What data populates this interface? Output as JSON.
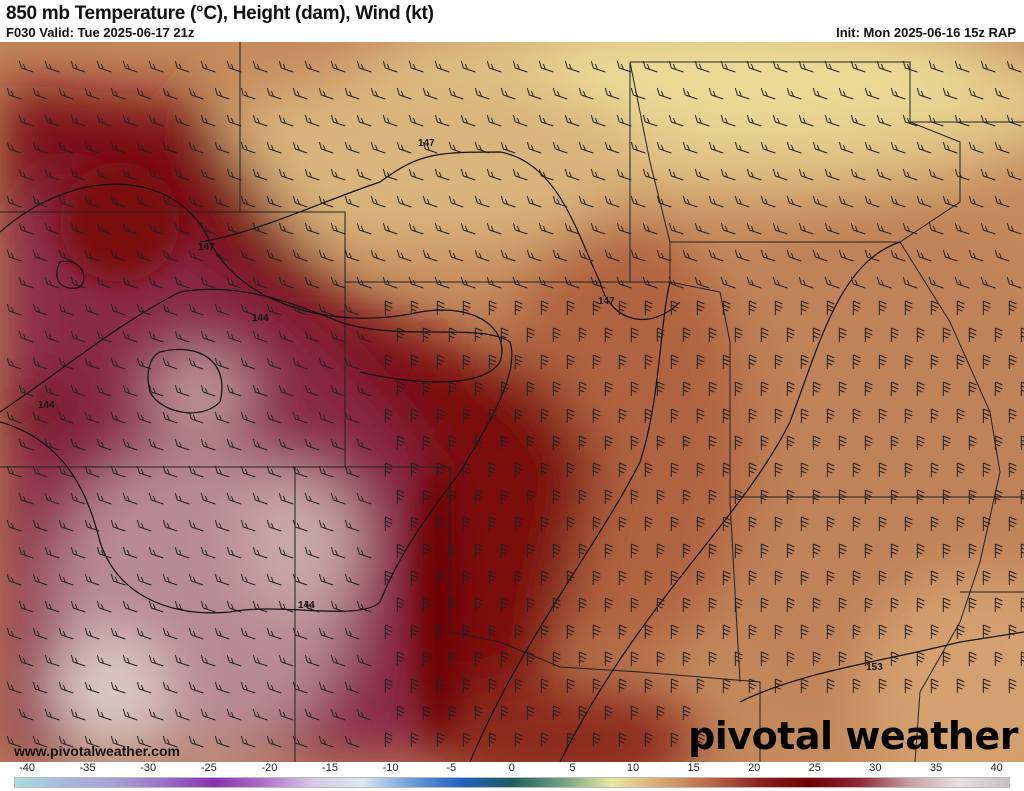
{
  "header": {
    "title": "850 mb Temperature (°C), Height (dam), Wind (kt)",
    "valid": "F030 Valid: Tue 2025-06-17 21z",
    "init": "Init: Mon 2025-06-16 15z RAP"
  },
  "map": {
    "contour_labels": [
      "147",
      "147",
      "147",
      "144",
      "144",
      "144",
      "153"
    ]
  },
  "footer": {
    "url": "www.pivotalweather.com",
    "logo": "pivotal weather"
  },
  "colorbar": {
    "unit": "°C",
    "ticks": [
      "-40",
      "-35",
      "-30",
      "-25",
      "-20",
      "-15",
      "-10",
      "-5",
      "0",
      "5",
      "10",
      "15",
      "20",
      "25",
      "30",
      "35",
      "40"
    ],
    "range": [
      -40,
      40
    ],
    "colors": [
      "#a8dce0",
      "#a8b8dc",
      "#a8a0d8",
      "#9a70c8",
      "#8a30b0",
      "#b070c8",
      "#d8c8e8",
      "#d8e8f0",
      "#6a9ad8",
      "#2060c0",
      "#1e5e5e",
      "#70a080",
      "#e8e8a0",
      "#d8a870",
      "#b86848",
      "#8a2020",
      "#700000",
      "#902838",
      "#c8a0a0",
      "#e8e0e0",
      "#c8c0c0"
    ]
  }
}
